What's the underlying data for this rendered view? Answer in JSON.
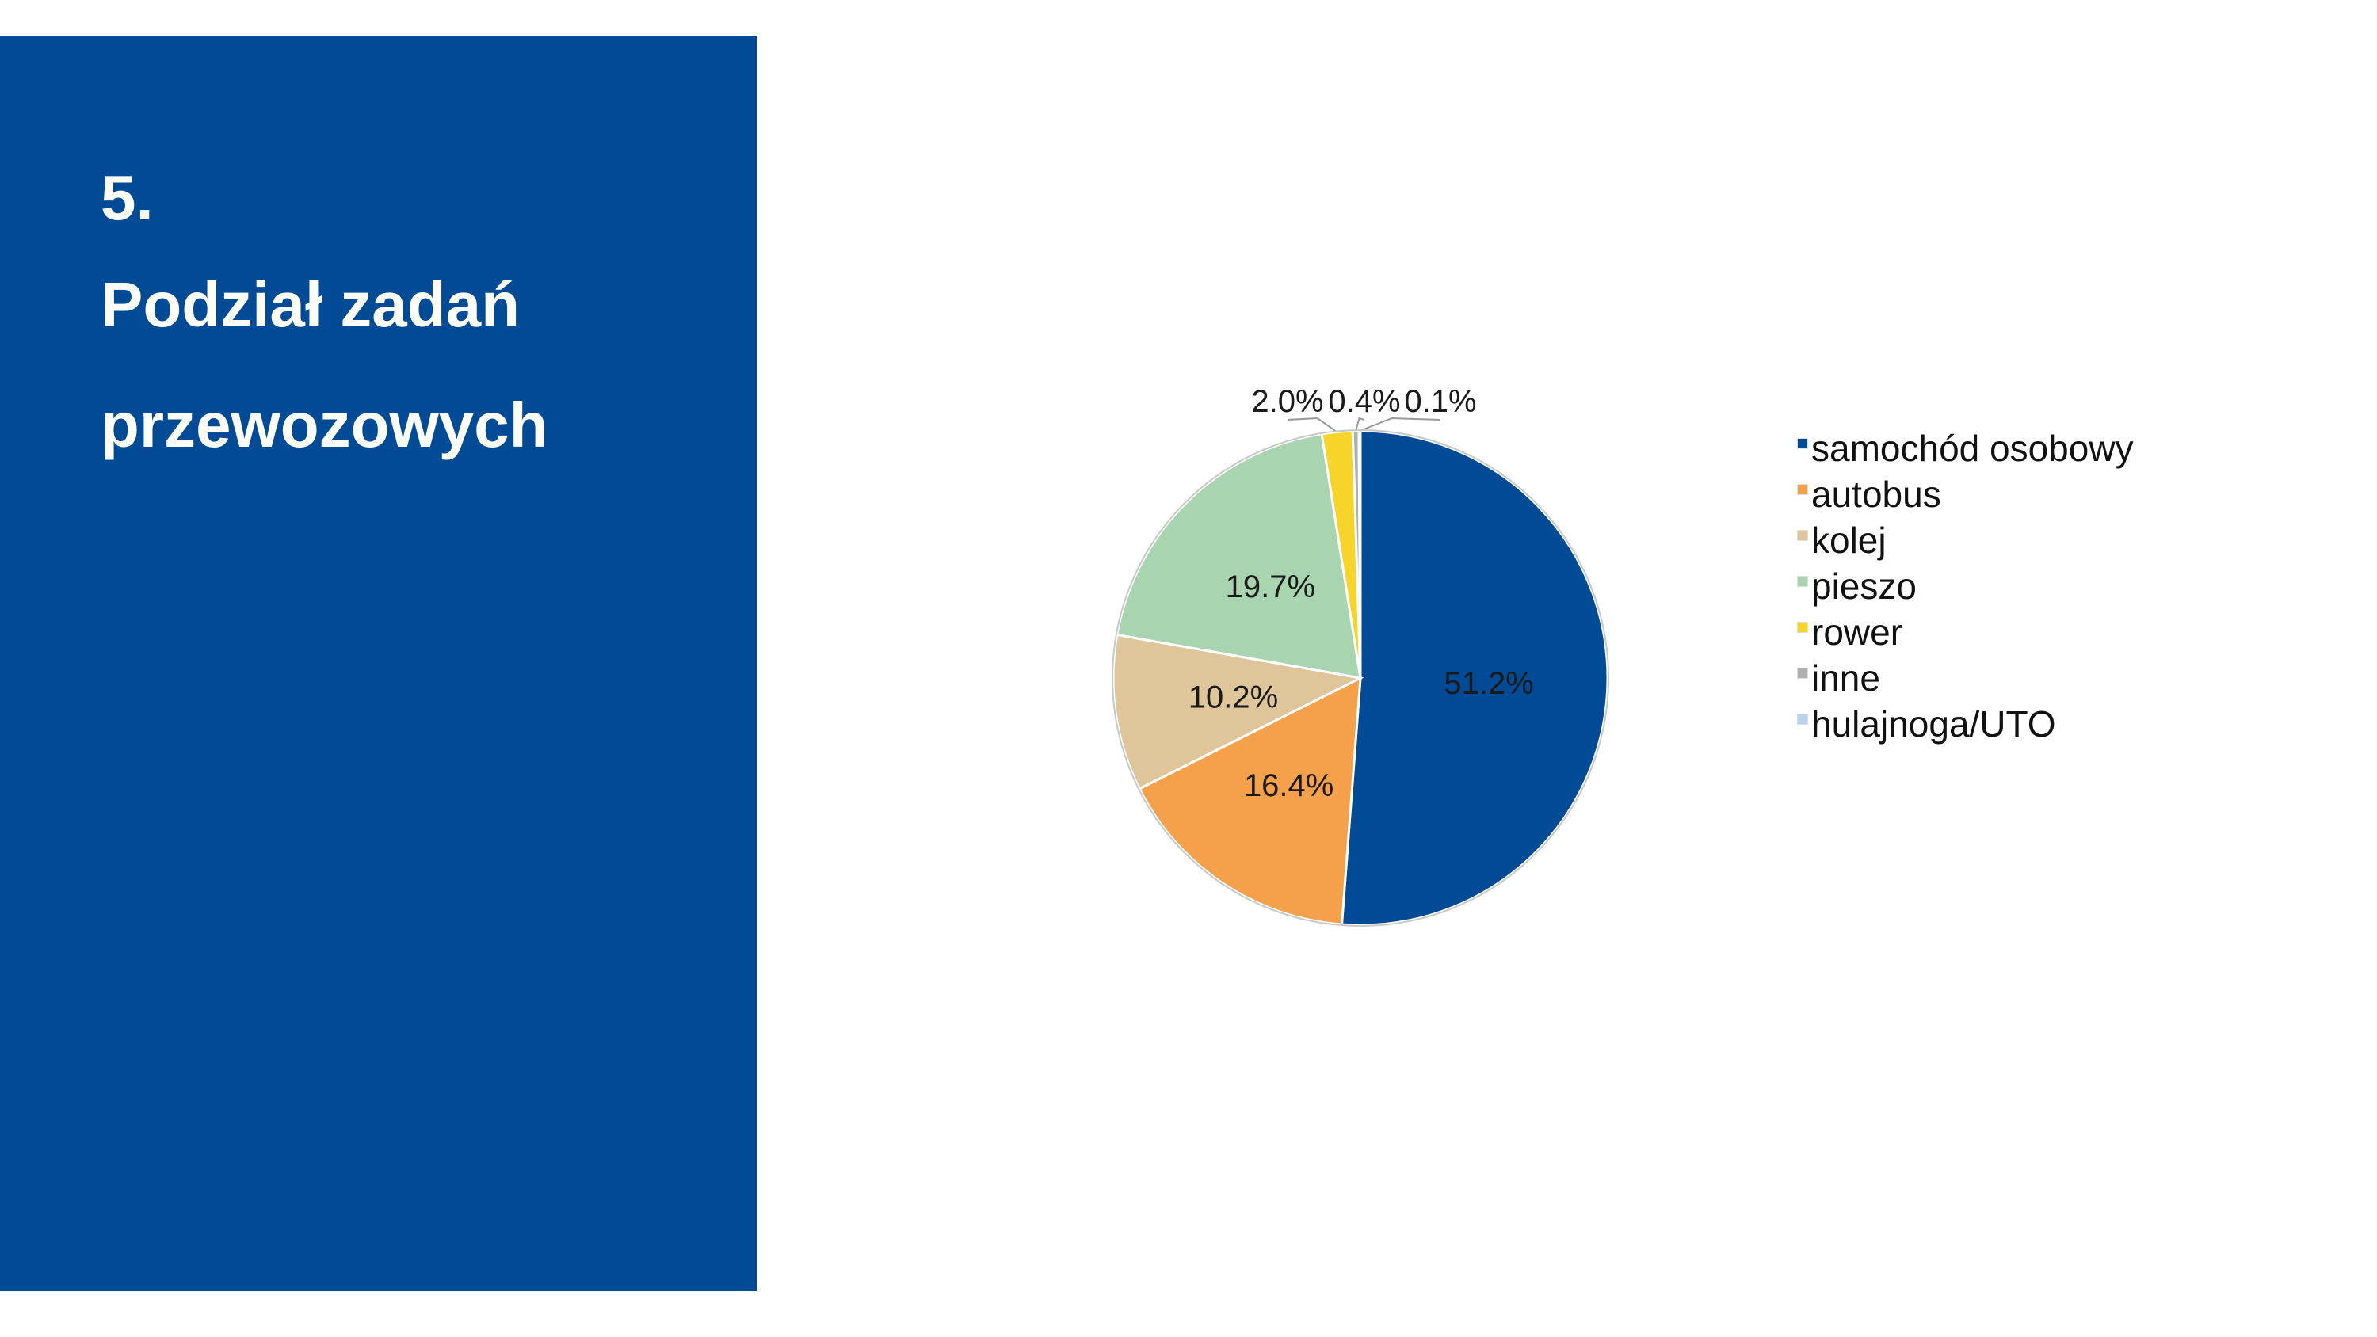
{
  "panel": {
    "number": "5.",
    "title_line1": "Podział zadań",
    "title_line2": "przewozowych"
  },
  "chart_data": {
    "type": "pie",
    "start": "top",
    "direction": "clockwise",
    "categories": [
      "samochód osobowy",
      "autobus",
      "kolej",
      "pieszo",
      "rower",
      "inne",
      "hulajnoga/UTO"
    ],
    "values": [
      51.2,
      16.4,
      10.2,
      19.7,
      2.0,
      0.4,
      0.1
    ],
    "labels": [
      "51.2%",
      "16.4%",
      "10.2%",
      "19.7%",
      "2.0%",
      "0.4%",
      "0.1%"
    ],
    "colors": [
      "#014b96",
      "#f5a04a",
      "#dfc69a",
      "#a8d5b0",
      "#f7d42a",
      "#b0b0b0",
      "#b9d3ee"
    ],
    "legend_position": "right"
  }
}
